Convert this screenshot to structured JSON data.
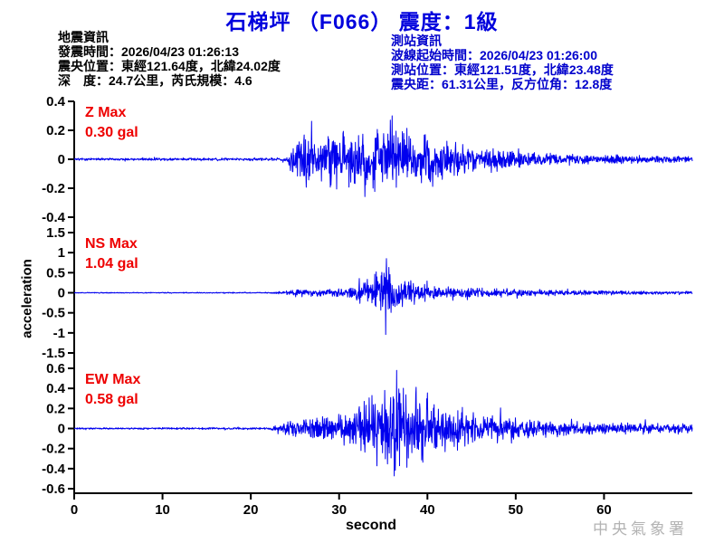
{
  "title": "石梯坪 （F066） 震度：1級",
  "eq_info": {
    "heading": "地震資訊",
    "lines": [
      "發震時間：2026/04/23 01:26:13",
      "震央位置：東經121.64度，北緯24.02度",
      "深　度：24.7公里，芮氏規模：4.6"
    ]
  },
  "station_info": {
    "heading": "測站資訊",
    "lines": [
      "波線起始時間：2026/04/23 01:26:00",
      "測站位置：東經121.51度，北緯23.48度",
      "震央距：61.31公里，反方位角：12.8度"
    ]
  },
  "watermark": "中央氣象署",
  "colors": {
    "title": "#0000dd",
    "station_info": "#0000cc",
    "eq_info": "#000000",
    "trace": "#0000ee",
    "max_label": "#ee0000",
    "axis": "#000000",
    "watermark": "#b3b3b3"
  },
  "chart_data": {
    "type": "line",
    "title": "石梯坪 （F066） 震度：1級",
    "xlabel": "second",
    "ylabel": "acceleration",
    "xlim": [
      0,
      70
    ],
    "xticks": [
      0,
      10,
      20,
      30,
      40,
      50,
      60
    ],
    "grid": false,
    "legend": "none",
    "subplots": [
      {
        "channel": "Z",
        "max_label": "Z Max",
        "max_text": "0.30 gal",
        "max_gal": 0.3,
        "peak_sign": 1,
        "peak_time": 36.0,
        "ylim": [
          -0.4,
          0.4
        ],
        "ytick_values": [
          0.4,
          0.2,
          0,
          -0.2,
          -0.4
        ],
        "ytick_labels": [
          "0.4",
          "0.2",
          "0",
          "-0.2",
          "-0.4"
        ],
        "envelope": [
          [
            0,
            0.01
          ],
          [
            23,
            0.012
          ],
          [
            24.2,
            0.02
          ],
          [
            24.8,
            0.15
          ],
          [
            26,
            0.2
          ],
          [
            28,
            0.18
          ],
          [
            30,
            0.24
          ],
          [
            32,
            0.2
          ],
          [
            34,
            0.26
          ],
          [
            36,
            0.3
          ],
          [
            37.5,
            0.24
          ],
          [
            39,
            0.2
          ],
          [
            41,
            0.17
          ],
          [
            44,
            0.12
          ],
          [
            47,
            0.09
          ],
          [
            50,
            0.07
          ],
          [
            54,
            0.05
          ],
          [
            58,
            0.04
          ],
          [
            63,
            0.033
          ],
          [
            70,
            0.025
          ]
        ],
        "seed": 7
      },
      {
        "channel": "NS",
        "max_label": "NS Max",
        "max_text": "1.04 gal",
        "max_gal": 1.04,
        "peak_sign": -1,
        "peak_time": 35.3,
        "ylim": [
          -1.5,
          1.5
        ],
        "ytick_values": [
          1.5,
          1,
          0.5,
          0,
          -0.5,
          -1,
          -1.5
        ],
        "ytick_labels": [
          "1.5",
          "1",
          "0.5",
          "0",
          "-0.5",
          "-1",
          "-1.5"
        ],
        "envelope": [
          [
            0,
            0.012
          ],
          [
            22,
            0.015
          ],
          [
            23.5,
            0.04
          ],
          [
            25,
            0.09
          ],
          [
            27,
            0.11
          ],
          [
            29,
            0.12
          ],
          [
            31,
            0.15
          ],
          [
            33,
            0.35
          ],
          [
            34.3,
            0.65
          ],
          [
            35.3,
            1.04
          ],
          [
            36.2,
            0.6
          ],
          [
            37.2,
            0.42
          ],
          [
            38.5,
            0.3
          ],
          [
            40,
            0.24
          ],
          [
            42,
            0.18
          ],
          [
            45,
            0.14
          ],
          [
            48,
            0.12
          ],
          [
            52,
            0.09
          ],
          [
            56,
            0.07
          ],
          [
            62,
            0.055
          ],
          [
            70,
            0.045
          ]
        ],
        "seed": 13
      },
      {
        "channel": "EW",
        "max_label": "EW Max",
        "max_text": "0.58 gal",
        "max_gal": 0.58,
        "peak_sign": 1,
        "peak_time": 36.5,
        "ylim": [
          -0.6,
          0.6
        ],
        "ytick_values": [
          0.6,
          0.4,
          0.2,
          0,
          -0.2,
          -0.4,
          -0.6
        ],
        "ytick_labels": [
          "0.6",
          "0.4",
          "0.2",
          "0",
          "-0.2",
          "-0.4",
          "-0.6"
        ],
        "envelope": [
          [
            0,
            0.01
          ],
          [
            22,
            0.012
          ],
          [
            23.5,
            0.05
          ],
          [
            25,
            0.11
          ],
          [
            27,
            0.13
          ],
          [
            29,
            0.15
          ],
          [
            31,
            0.18
          ],
          [
            33,
            0.3
          ],
          [
            34.5,
            0.42
          ],
          [
            36,
            0.52
          ],
          [
            36.8,
            0.58
          ],
          [
            38,
            0.42
          ],
          [
            40,
            0.33
          ],
          [
            42,
            0.27
          ],
          [
            45,
            0.2
          ],
          [
            48,
            0.15
          ],
          [
            52,
            0.11
          ],
          [
            56,
            0.085
          ],
          [
            62,
            0.065
          ],
          [
            70,
            0.05
          ]
        ],
        "seed": 21
      }
    ]
  }
}
